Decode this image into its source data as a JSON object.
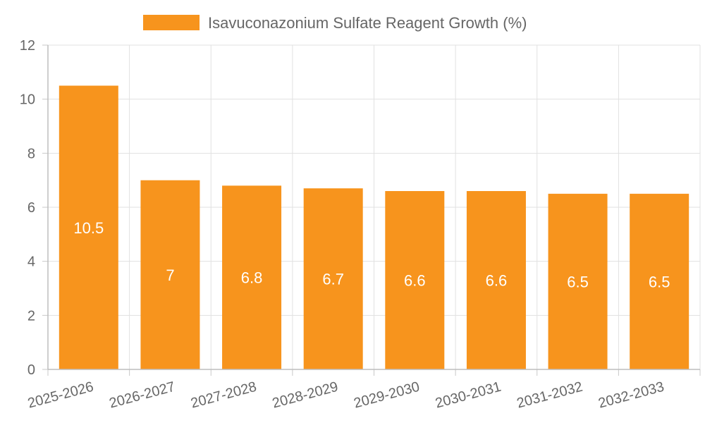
{
  "chart_data": {
    "type": "bar",
    "title": "",
    "xlabel": "",
    "ylabel": "",
    "categories": [
      "2025-2026",
      "2026-2027",
      "2027-2028",
      "2028-2029",
      "2029-2030",
      "2030-2031",
      "2031-2032",
      "2032-2033"
    ],
    "series": [
      {
        "name": "Isavuconazonium Sulfate Reagent Growth (%)",
        "values": [
          10.5,
          7,
          6.8,
          6.7,
          6.6,
          6.6,
          6.5,
          6.5
        ],
        "color": "#f7941d"
      }
    ],
    "ylim": [
      0,
      12
    ],
    "yticks": [
      0,
      2,
      4,
      6,
      8,
      10,
      12
    ],
    "grid": true,
    "legend_position": "top-center",
    "data_labels": true
  }
}
